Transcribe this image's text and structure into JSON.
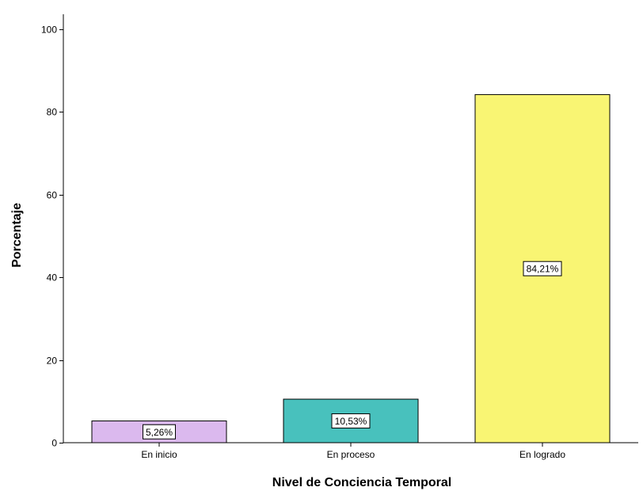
{
  "chart_data": {
    "type": "bar",
    "categories": [
      "En inicio",
      "En proceso",
      "En logrado"
    ],
    "values": [
      5.26,
      10.53,
      84.21
    ],
    "data_labels": [
      "5,26%",
      "10,53%",
      "84,21%"
    ],
    "colors": [
      "#dbb9ee",
      "#48c1bd",
      "#f9f573"
    ],
    "xlabel": "Nivel de Conciencia Temporal",
    "ylabel": "Porcentaje",
    "ylim": [
      0,
      100
    ],
    "yticks": [
      0,
      20,
      40,
      60,
      80,
      100
    ],
    "grid": false,
    "legend": false
  }
}
